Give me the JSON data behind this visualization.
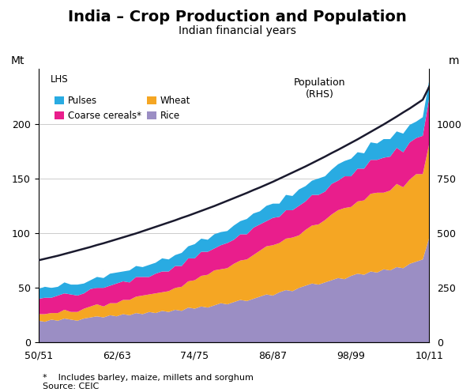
{
  "title": "India – Crop Production and Population",
  "subtitle": "Indian financial years",
  "ylabel_left": "Mt",
  "ylabel_right": "m",
  "footnote1": "*    Includes barley, maize, millets and sorghum",
  "footnote2": "Source: CEIC",
  "legend_lhs": "LHS",
  "legend_population": "Population\n(RHS)",
  "xtick_labels": [
    "50/51",
    "62/63",
    "74/75",
    "86/87",
    "98/99",
    "10/11"
  ],
  "xtick_positions": [
    0,
    12,
    24,
    36,
    48,
    60
  ],
  "ylim_left": [
    0,
    250
  ],
  "ylim_right": [
    0,
    1250
  ],
  "yticks_left": [
    0,
    50,
    100,
    150,
    200
  ],
  "yticks_right": [
    0,
    250,
    500,
    750,
    1000
  ],
  "color_rice": "#9B8EC4",
  "color_wheat": "#F5A623",
  "color_coarse": "#E91E8C",
  "color_pulses": "#29ABE2",
  "color_population": "#1a1a2e",
  "background": "#ffffff",
  "grid_color": "#cccccc",
  "years": [
    0,
    1,
    2,
    3,
    4,
    5,
    6,
    7,
    8,
    9,
    10,
    11,
    12,
    13,
    14,
    15,
    16,
    17,
    18,
    19,
    20,
    21,
    22,
    23,
    24,
    25,
    26,
    27,
    28,
    29,
    30,
    31,
    32,
    33,
    34,
    35,
    36,
    37,
    38,
    39,
    40,
    41,
    42,
    43,
    44,
    45,
    46,
    47,
    48,
    49,
    50,
    51,
    52,
    53,
    54,
    55,
    56,
    57,
    58,
    59,
    60
  ],
  "rice": [
    20,
    19,
    21,
    20,
    22,
    21,
    20,
    22,
    23,
    24,
    23,
    25,
    24,
    26,
    25,
    27,
    26,
    28,
    27,
    29,
    28,
    30,
    29,
    32,
    31,
    33,
    32,
    34,
    36,
    35,
    37,
    39,
    38,
    40,
    42,
    44,
    43,
    46,
    48,
    47,
    50,
    52,
    54,
    53,
    55,
    57,
    59,
    58,
    61,
    63,
    62,
    65,
    64,
    67,
    66,
    69,
    68,
    72,
    74,
    76,
    96
  ],
  "wheat": [
    6,
    7,
    6,
    7,
    8,
    7,
    8,
    9,
    10,
    11,
    10,
    11,
    12,
    13,
    14,
    15,
    17,
    16,
    18,
    17,
    19,
    20,
    22,
    24,
    26,
    28,
    30,
    32,
    31,
    33,
    35,
    36,
    38,
    40,
    42,
    44,
    46,
    45,
    47,
    49,
    48,
    51,
    53,
    55,
    57,
    60,
    62,
    65,
    63,
    66,
    68,
    71,
    73,
    70,
    73,
    76,
    74,
    77,
    80,
    78,
    86
  ],
  "coarse": [
    14,
    15,
    14,
    16,
    15,
    16,
    15,
    14,
    16,
    15,
    17,
    16,
    18,
    17,
    16,
    18,
    17,
    16,
    18,
    19,
    18,
    20,
    19,
    21,
    20,
    22,
    21,
    20,
    22,
    23,
    22,
    24,
    23,
    25,
    24,
    23,
    25,
    24,
    26,
    25,
    27,
    26,
    28,
    27,
    26,
    28,
    27,
    29,
    28,
    30,
    29,
    31,
    30,
    32,
    31,
    33,
    32,
    34,
    33,
    35,
    42
  ],
  "pulses": [
    9,
    10,
    9,
    8,
    10,
    9,
    10,
    9,
    8,
    10,
    9,
    11,
    10,
    9,
    11,
    10,
    9,
    11,
    10,
    12,
    11,
    10,
    12,
    11,
    13,
    12,
    11,
    13,
    12,
    11,
    13,
    12,
    14,
    13,
    12,
    14,
    13,
    12,
    14,
    13,
    15,
    14,
    13,
    15,
    14,
    13,
    15,
    14,
    16,
    15,
    14,
    16,
    15,
    17,
    16,
    15,
    17,
    16,
    15,
    17,
    16
  ],
  "population": [
    376,
    383,
    390,
    397,
    405,
    413,
    421,
    429,
    437,
    446,
    454,
    463,
    472,
    481,
    490,
    499,
    509,
    519,
    529,
    539,
    549,
    559,
    570,
    580,
    591,
    602,
    613,
    624,
    636,
    648,
    660,
    672,
    684,
    697,
    709,
    722,
    735,
    749,
    763,
    777,
    791,
    805,
    820,
    835,
    850,
    866,
    881,
    897,
    913,
    929,
    946,
    963,
    980,
    997,
    1015,
    1033,
    1052,
    1070,
    1090,
    1110,
    1170
  ],
  "title_fontsize": 14,
  "subtitle_fontsize": 10,
  "tick_fontsize": 9,
  "legend_fontsize": 8.5,
  "annotation_fontsize": 9,
  "footnote_fontsize": 8
}
